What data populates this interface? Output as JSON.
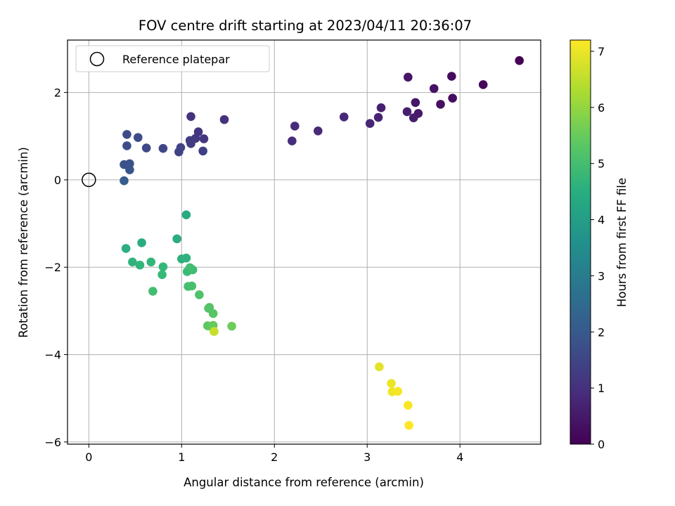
{
  "chart_data": {
    "type": "scatter",
    "title": "FOV centre drift starting at 2023/04/11 20:36:07",
    "xlabel": "Angular distance from reference (arcmin)",
    "ylabel": "Rotation from reference (arcmin)",
    "xlim": [
      -0.23,
      4.87
    ],
    "ylim": [
      -6.05,
      3.2
    ],
    "xticks": [
      0,
      1,
      2,
      3,
      4
    ],
    "xtick_labels": [
      "0",
      "1",
      "2",
      "3",
      "4"
    ],
    "yticks": [
      -6,
      -4,
      -2,
      0,
      2
    ],
    "ytick_labels": [
      "−6",
      "−4",
      "−2",
      "0",
      "2"
    ],
    "grid": true,
    "legend": {
      "position": "top-left",
      "entries": [
        "Reference platepar"
      ]
    },
    "reference_point": {
      "x": 0,
      "y": 0
    },
    "colorbar": {
      "label": "Hours from first FF file",
      "range": [
        0,
        7.2
      ],
      "ticks": [
        0,
        1,
        2,
        3,
        4,
        5,
        6,
        7
      ],
      "tick_labels": [
        "0",
        "1",
        "2",
        "3",
        "4",
        "5",
        "6",
        "7"
      ],
      "colormap": "viridis"
    },
    "points": [
      {
        "x": 4.64,
        "y": 2.73,
        "t": 0.0
      },
      {
        "x": 4.25,
        "y": 2.18,
        "t": 0.1
      },
      {
        "x": 3.91,
        "y": 2.37,
        "t": 0.2
      },
      {
        "x": 3.92,
        "y": 1.87,
        "t": 0.25
      },
      {
        "x": 3.79,
        "y": 1.73,
        "t": 0.3
      },
      {
        "x": 3.72,
        "y": 2.09,
        "t": 0.35
      },
      {
        "x": 3.44,
        "y": 2.35,
        "t": 0.4
      },
      {
        "x": 3.52,
        "y": 1.77,
        "t": 0.45
      },
      {
        "x": 3.55,
        "y": 1.52,
        "t": 0.5
      },
      {
        "x": 3.5,
        "y": 1.42,
        "t": 0.55
      },
      {
        "x": 3.43,
        "y": 1.56,
        "t": 0.6
      },
      {
        "x": 3.15,
        "y": 1.65,
        "t": 0.65
      },
      {
        "x": 3.12,
        "y": 1.43,
        "t": 0.7
      },
      {
        "x": 3.03,
        "y": 1.29,
        "t": 0.75
      },
      {
        "x": 2.75,
        "y": 1.44,
        "t": 0.8
      },
      {
        "x": 2.47,
        "y": 1.12,
        "t": 0.85
      },
      {
        "x": 2.22,
        "y": 1.23,
        "t": 0.9
      },
      {
        "x": 2.19,
        "y": 0.89,
        "t": 0.95
      },
      {
        "x": 1.46,
        "y": 1.38,
        "t": 1.0
      },
      {
        "x": 1.1,
        "y": 1.45,
        "t": 1.05
      },
      {
        "x": 1.18,
        "y": 1.1,
        "t": 1.1
      },
      {
        "x": 1.24,
        "y": 0.94,
        "t": 1.15
      },
      {
        "x": 1.15,
        "y": 0.95,
        "t": 1.2
      },
      {
        "x": 1.09,
        "y": 0.9,
        "t": 1.25
      },
      {
        "x": 1.1,
        "y": 0.83,
        "t": 1.3
      },
      {
        "x": 1.23,
        "y": 0.66,
        "t": 1.35
      },
      {
        "x": 0.99,
        "y": 0.74,
        "t": 1.4
      },
      {
        "x": 0.97,
        "y": 0.64,
        "t": 1.45
      },
      {
        "x": 0.8,
        "y": 0.72,
        "t": 1.5
      },
      {
        "x": 0.62,
        "y": 0.73,
        "t": 1.55
      },
      {
        "x": 0.53,
        "y": 0.97,
        "t": 1.6
      },
      {
        "x": 0.41,
        "y": 1.04,
        "t": 1.65
      },
      {
        "x": 0.41,
        "y": 0.78,
        "t": 1.7
      },
      {
        "x": 0.38,
        "y": 0.35,
        "t": 1.75
      },
      {
        "x": 0.44,
        "y": 0.37,
        "t": 1.8
      },
      {
        "x": 0.44,
        "y": 0.23,
        "t": 1.9
      },
      {
        "x": 0.38,
        "y": -0.02,
        "t": 2.1
      },
      {
        "x": 1.05,
        "y": -0.8,
        "t": 4.35
      },
      {
        "x": 0.95,
        "y": -1.35,
        "t": 4.4
      },
      {
        "x": 0.57,
        "y": -1.44,
        "t": 4.45
      },
      {
        "x": 0.4,
        "y": -1.57,
        "t": 4.5
      },
      {
        "x": 1.0,
        "y": -1.81,
        "t": 4.55
      },
      {
        "x": 1.05,
        "y": -1.79,
        "t": 4.6
      },
      {
        "x": 0.47,
        "y": -1.88,
        "t": 4.65
      },
      {
        "x": 0.55,
        "y": -1.95,
        "t": 4.7
      },
      {
        "x": 0.67,
        "y": -1.88,
        "t": 4.75
      },
      {
        "x": 0.8,
        "y": -1.99,
        "t": 4.8
      },
      {
        "x": 0.79,
        "y": -2.17,
        "t": 4.85
      },
      {
        "x": 1.06,
        "y": -2.1,
        "t": 4.9
      },
      {
        "x": 1.12,
        "y": -2.06,
        "t": 4.95
      },
      {
        "x": 1.09,
        "y": -2.01,
        "t": 5.0
      },
      {
        "x": 0.69,
        "y": -2.55,
        "t": 5.0
      },
      {
        "x": 1.07,
        "y": -2.44,
        "t": 5.05
      },
      {
        "x": 1.11,
        "y": -2.43,
        "t": 5.1
      },
      {
        "x": 1.19,
        "y": -2.63,
        "t": 5.15
      },
      {
        "x": 1.29,
        "y": -2.94,
        "t": 5.2
      },
      {
        "x": 1.3,
        "y": -2.92,
        "t": 5.25
      },
      {
        "x": 1.34,
        "y": -3.06,
        "t": 5.3
      },
      {
        "x": 1.28,
        "y": -3.34,
        "t": 5.35
      },
      {
        "x": 1.32,
        "y": -3.36,
        "t": 5.4
      },
      {
        "x": 1.34,
        "y": -3.33,
        "t": 5.5
      },
      {
        "x": 1.54,
        "y": -3.35,
        "t": 5.6
      },
      {
        "x": 1.35,
        "y": -3.47,
        "t": 6.6
      },
      {
        "x": 3.13,
        "y": -4.28,
        "t": 6.9
      },
      {
        "x": 3.26,
        "y": -4.66,
        "t": 7.0
      },
      {
        "x": 3.27,
        "y": -4.85,
        "t": 7.05
      },
      {
        "x": 3.33,
        "y": -4.84,
        "t": 7.1
      },
      {
        "x": 3.44,
        "y": -5.16,
        "t": 7.15
      },
      {
        "x": 3.45,
        "y": -5.62,
        "t": 7.2
      }
    ]
  }
}
